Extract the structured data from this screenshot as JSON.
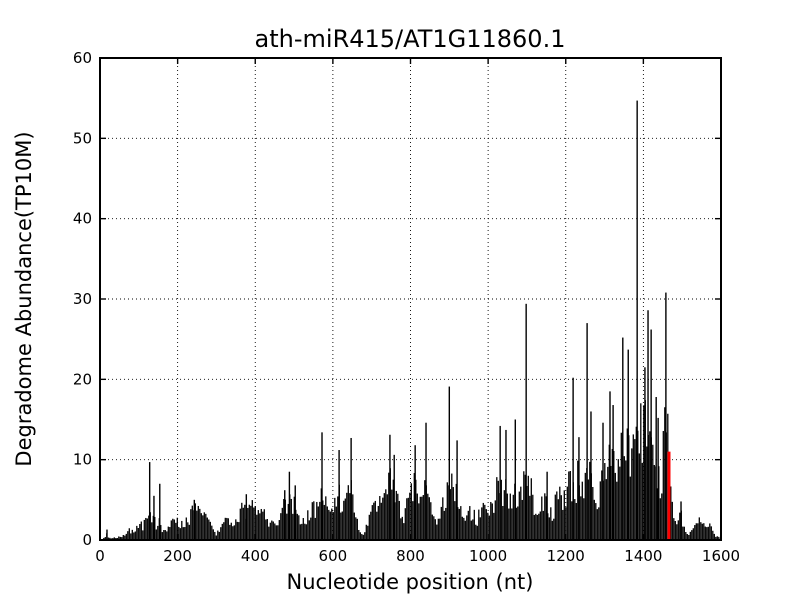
{
  "chart_data": {
    "type": "bar",
    "title": "ath-miR415/AT1G11860.1",
    "xlabel": "Nucleotide position (nt)",
    "ylabel": "Degradome Abundance(TP10M)",
    "xlim": [
      0,
      1600
    ],
    "ylim": [
      0,
      60
    ],
    "xticks": [
      0,
      200,
      400,
      600,
      800,
      1000,
      1200,
      1400,
      1600
    ],
    "yticks": [
      0,
      10,
      20,
      30,
      40,
      50,
      60
    ],
    "grid": true,
    "grid_style": "dotted",
    "background_color": "#ffffff",
    "bar_color": "#000000",
    "highlight_color": "#ff0000",
    "cleavage_site": {
      "x": 1466,
      "y": 11.0
    },
    "peaks": [
      [
        18,
        1.3
      ],
      [
        128,
        9.7
      ],
      [
        139,
        5.5
      ],
      [
        154,
        7.0
      ],
      [
        243,
        5.0
      ],
      [
        377,
        5.7
      ],
      [
        476,
        6.2
      ],
      [
        488,
        8.5
      ],
      [
        503,
        6.8
      ],
      [
        572,
        13.4
      ],
      [
        616,
        11.2
      ],
      [
        647,
        12.7
      ],
      [
        747,
        13.1
      ],
      [
        758,
        10.6
      ],
      [
        812,
        11.8
      ],
      [
        840,
        14.6
      ],
      [
        900,
        19.1
      ],
      [
        920,
        12.4
      ],
      [
        1031,
        14.2
      ],
      [
        1046,
        13.7
      ],
      [
        1070,
        15.0
      ],
      [
        1098,
        29.4
      ],
      [
        1152,
        8.5
      ],
      [
        1219,
        20.2
      ],
      [
        1234,
        12.8
      ],
      [
        1255,
        27.0
      ],
      [
        1265,
        16.0
      ],
      [
        1296,
        14.6
      ],
      [
        1314,
        18.5
      ],
      [
        1322,
        16.8
      ],
      [
        1347,
        25.2
      ],
      [
        1361,
        23.7
      ],
      [
        1384,
        54.7
      ],
      [
        1404,
        21.5
      ],
      [
        1412,
        28.6
      ],
      [
        1420,
        26.2
      ],
      [
        1433,
        17.8
      ],
      [
        1438,
        15.2
      ],
      [
        1458,
        30.8
      ],
      [
        1497,
        4.8
      ]
    ],
    "envelope": [
      [
        0,
        0
      ],
      [
        8,
        0.2
      ],
      [
        14,
        0.4
      ],
      [
        18,
        1.2
      ],
      [
        22,
        0.3
      ],
      [
        32,
        0.3
      ],
      [
        42,
        0.4
      ],
      [
        52,
        0.5
      ],
      [
        60,
        0.7
      ],
      [
        68,
        1.0
      ],
      [
        75,
        1.5
      ],
      [
        82,
        1.2
      ],
      [
        90,
        1.8
      ],
      [
        97,
        2.2
      ],
      [
        103,
        2.6
      ],
      [
        110,
        2.2
      ],
      [
        117,
        2.9
      ],
      [
        123,
        3.4
      ],
      [
        128,
        3.8
      ],
      [
        134,
        2.6
      ],
      [
        139,
        3.4
      ],
      [
        144,
        2.4
      ],
      [
        149,
        3.0
      ],
      [
        154,
        3.1
      ],
      [
        160,
        2.0
      ],
      [
        166,
        1.3
      ],
      [
        173,
        1.6
      ],
      [
        181,
        2.3
      ],
      [
        189,
        2.9
      ],
      [
        197,
        3.3
      ],
      [
        205,
        2.7
      ],
      [
        213,
        2.3
      ],
      [
        221,
        2.9
      ],
      [
        229,
        3.5
      ],
      [
        236,
        4.3
      ],
      [
        243,
        4.9
      ],
      [
        251,
        4.3
      ],
      [
        259,
        4.7
      ],
      [
        265,
        3.7
      ],
      [
        273,
        3.3
      ],
      [
        281,
        2.7
      ],
      [
        289,
        1.7
      ],
      [
        297,
        1.0
      ],
      [
        306,
        1.4
      ],
      [
        313,
        2.0
      ],
      [
        321,
        2.7
      ],
      [
        329,
        3.1
      ],
      [
        336,
        2.5
      ],
      [
        343,
        1.9
      ],
      [
        351,
        3.1
      ],
      [
        358,
        4.5
      ],
      [
        364,
        4.9
      ],
      [
        370,
        4.3
      ],
      [
        377,
        5.2
      ],
      [
        384,
        4.7
      ],
      [
        391,
        5.1
      ],
      [
        398,
        4.5
      ],
      [
        405,
        3.7
      ],
      [
        412,
        4.1
      ],
      [
        418,
        4.3
      ],
      [
        425,
        3.7
      ],
      [
        432,
        2.7
      ],
      [
        439,
        3.1
      ],
      [
        447,
        2.5
      ],
      [
        454,
        1.9
      ],
      [
        462,
        2.5
      ],
      [
        469,
        4.5
      ],
      [
        476,
        5.6
      ],
      [
        482,
        5.3
      ],
      [
        488,
        6.0
      ],
      [
        495,
        5.3
      ],
      [
        501,
        5.9
      ],
      [
        507,
        4.5
      ],
      [
        514,
        3.3
      ],
      [
        521,
        2.7
      ],
      [
        528,
        3.5
      ],
      [
        535,
        4.3
      ],
      [
        542,
        5.1
      ],
      [
        549,
        4.7
      ],
      [
        556,
        5.3
      ],
      [
        562,
        5.9
      ],
      [
        568,
        6.5
      ],
      [
        574,
        7.2
      ],
      [
        579,
        6.2
      ],
      [
        585,
        5.0
      ],
      [
        592,
        3.7
      ],
      [
        600,
        4.7
      ],
      [
        608,
        6.3
      ],
      [
        615,
        7.5
      ],
      [
        621,
        6.2
      ],
      [
        629,
        4.9
      ],
      [
        637,
        6.9
      ],
      [
        644,
        8.7
      ],
      [
        650,
        7.1
      ],
      [
        656,
        4.7
      ],
      [
        663,
        2.7
      ],
      [
        670,
        1.0
      ],
      [
        677,
        0.7
      ],
      [
        684,
        1.7
      ],
      [
        692,
        3.1
      ],
      [
        700,
        4.1
      ],
      [
        708,
        5.5
      ],
      [
        715,
        4.7
      ],
      [
        722,
        5.7
      ],
      [
        730,
        6.5
      ],
      [
        738,
        7.7
      ],
      [
        744,
        9.0
      ],
      [
        749,
        9.8
      ],
      [
        754,
        8.5
      ],
      [
        759,
        8.8
      ],
      [
        765,
        6.7
      ],
      [
        772,
        4.7
      ],
      [
        779,
        3.3
      ],
      [
        786,
        4.5
      ],
      [
        793,
        5.7
      ],
      [
        800,
        6.7
      ],
      [
        807,
        8.1
      ],
      [
        813,
        8.8
      ],
      [
        819,
        7.1
      ],
      [
        826,
        5.5
      ],
      [
        833,
        6.9
      ],
      [
        840,
        8.6
      ],
      [
        847,
        6.5
      ],
      [
        854,
        4.7
      ],
      [
        861,
        3.3
      ],
      [
        869,
        2.5
      ],
      [
        876,
        3.5
      ],
      [
        883,
        5.3
      ],
      [
        890,
        7.0
      ],
      [
        897,
        8.8
      ],
      [
        902,
        9.2
      ],
      [
        907,
        8.3
      ],
      [
        913,
        6.1
      ],
      [
        919,
        7.3
      ],
      [
        926,
        5.1
      ],
      [
        933,
        3.5
      ],
      [
        941,
        2.7
      ],
      [
        949,
        3.7
      ],
      [
        956,
        4.9
      ],
      [
        963,
        4.1
      ],
      [
        971,
        3.1
      ],
      [
        979,
        4.3
      ],
      [
        986,
        5.5
      ],
      [
        993,
        4.7
      ],
      [
        1001,
        3.9
      ],
      [
        1009,
        5.1
      ],
      [
        1016,
        6.5
      ],
      [
        1023,
        8.3
      ],
      [
        1030,
        9.2
      ],
      [
        1037,
        7.5
      ],
      [
        1044,
        8.8
      ],
      [
        1051,
        7.1
      ],
      [
        1059,
        5.7
      ],
      [
        1067,
        7.0
      ],
      [
        1073,
        7.8
      ],
      [
        1080,
        6.3
      ],
      [
        1087,
        7.5
      ],
      [
        1093,
        9.1
      ],
      [
        1098,
        10.5
      ],
      [
        1103,
        9.5
      ],
      [
        1108,
        10.0
      ],
      [
        1113,
        6.5
      ],
      [
        1120,
        4.7
      ],
      [
        1127,
        3.7
      ],
      [
        1134,
        4.9
      ],
      [
        1141,
        6.1
      ],
      [
        1148,
        6.9
      ],
      [
        1154,
        5.3
      ],
      [
        1161,
        4.1
      ],
      [
        1169,
        5.1
      ],
      [
        1177,
        6.3
      ],
      [
        1184,
        7.3
      ],
      [
        1190,
        6.3
      ],
      [
        1195,
        6.5
      ],
      [
        1202,
        8.0
      ],
      [
        1208,
        9.0
      ],
      [
        1214,
        9.5
      ],
      [
        1222,
        7.0
      ],
      [
        1228,
        9.0
      ],
      [
        1234,
        11.0
      ],
      [
        1240,
        9.0
      ],
      [
        1246,
        7.5
      ],
      [
        1252,
        10.0
      ],
      [
        1258,
        8.0
      ],
      [
        1262,
        11.0
      ],
      [
        1268,
        7.5
      ],
      [
        1274,
        6.0
      ],
      [
        1280,
        4.0
      ],
      [
        1287,
        7.0
      ],
      [
        1293,
        10.5
      ],
      [
        1299,
        11.5
      ],
      [
        1305,
        10.0
      ],
      [
        1311,
        12.5
      ],
      [
        1317,
        13.0
      ],
      [
        1323,
        13.5
      ],
      [
        1329,
        8.5
      ],
      [
        1335,
        11.0
      ],
      [
        1341,
        14.0
      ],
      [
        1347,
        16.0
      ],
      [
        1353,
        12.0
      ],
      [
        1359,
        15.0
      ],
      [
        1364,
        16.5
      ],
      [
        1369,
        12.5
      ],
      [
        1374,
        13.5
      ],
      [
        1379,
        15.0
      ],
      [
        1385,
        16.0
      ],
      [
        1391,
        16.5
      ],
      [
        1397,
        18.0
      ],
      [
        1403,
        19.5
      ],
      [
        1409,
        19.0
      ],
      [
        1414,
        17.0
      ],
      [
        1419,
        14.5
      ],
      [
        1425,
        11.5
      ],
      [
        1431,
        9.0
      ],
      [
        1437,
        11.5
      ],
      [
        1443,
        8.5
      ],
      [
        1449,
        12.0
      ],
      [
        1453,
        16.0
      ],
      [
        1457,
        21.0
      ],
      [
        1461,
        23.0
      ],
      [
        1464,
        17.0
      ],
      [
        1468,
        10.0
      ],
      [
        1472,
        7.0
      ],
      [
        1476,
        4.5
      ],
      [
        1481,
        2.5
      ],
      [
        1487,
        2.2
      ],
      [
        1492,
        3.8
      ],
      [
        1497,
        4.4
      ],
      [
        1503,
        2.6
      ],
      [
        1509,
        1.2
      ],
      [
        1516,
        0.8
      ],
      [
        1523,
        1.2
      ],
      [
        1530,
        1.8
      ],
      [
        1537,
        2.4
      ],
      [
        1543,
        3.0
      ],
      [
        1549,
        2.7
      ],
      [
        1555,
        2.3
      ],
      [
        1561,
        1.9
      ],
      [
        1567,
        1.7
      ],
      [
        1572,
        2.3
      ],
      [
        1579,
        1.2
      ],
      [
        1586,
        0.7
      ],
      [
        1594,
        0.4
      ],
      [
        1600,
        0.2
      ]
    ]
  }
}
